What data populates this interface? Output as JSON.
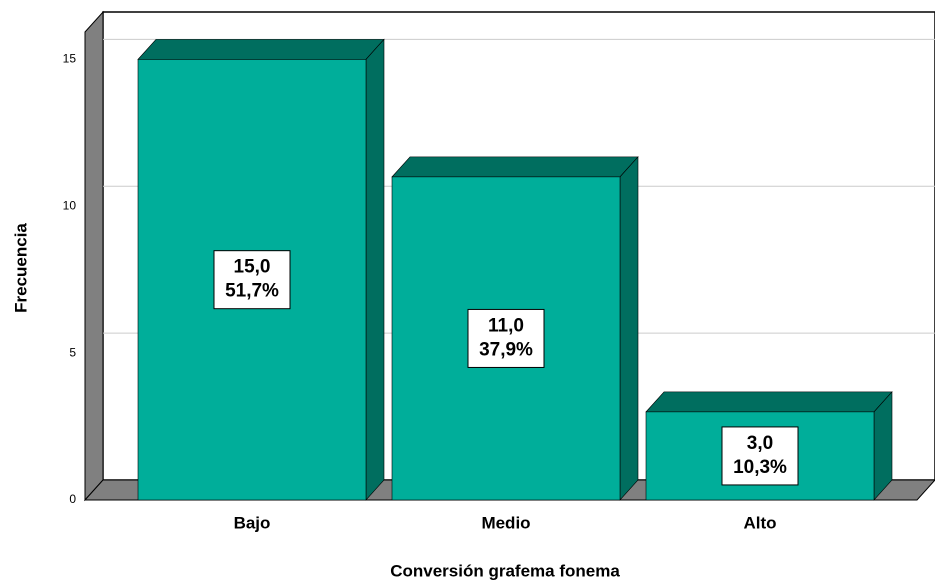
{
  "chart_data": {
    "type": "bar3d",
    "x_label": "Conversión grafema fonema",
    "y_label": "Frecuencia",
    "categories": [
      "Bajo",
      "Medio",
      "Alto"
    ],
    "values": [
      15,
      11,
      3
    ],
    "value_labels": [
      "15,0",
      "11,0",
      "3,0"
    ],
    "percent_labels": [
      "51,7%",
      "37,9%",
      "10,3%"
    ],
    "color": "#00ae9a",
    "shade_color": "#006e5f",
    "ylim": [
      0,
      16
    ],
    "yticks": [
      0,
      5,
      10,
      15
    ],
    "grid": true
  }
}
